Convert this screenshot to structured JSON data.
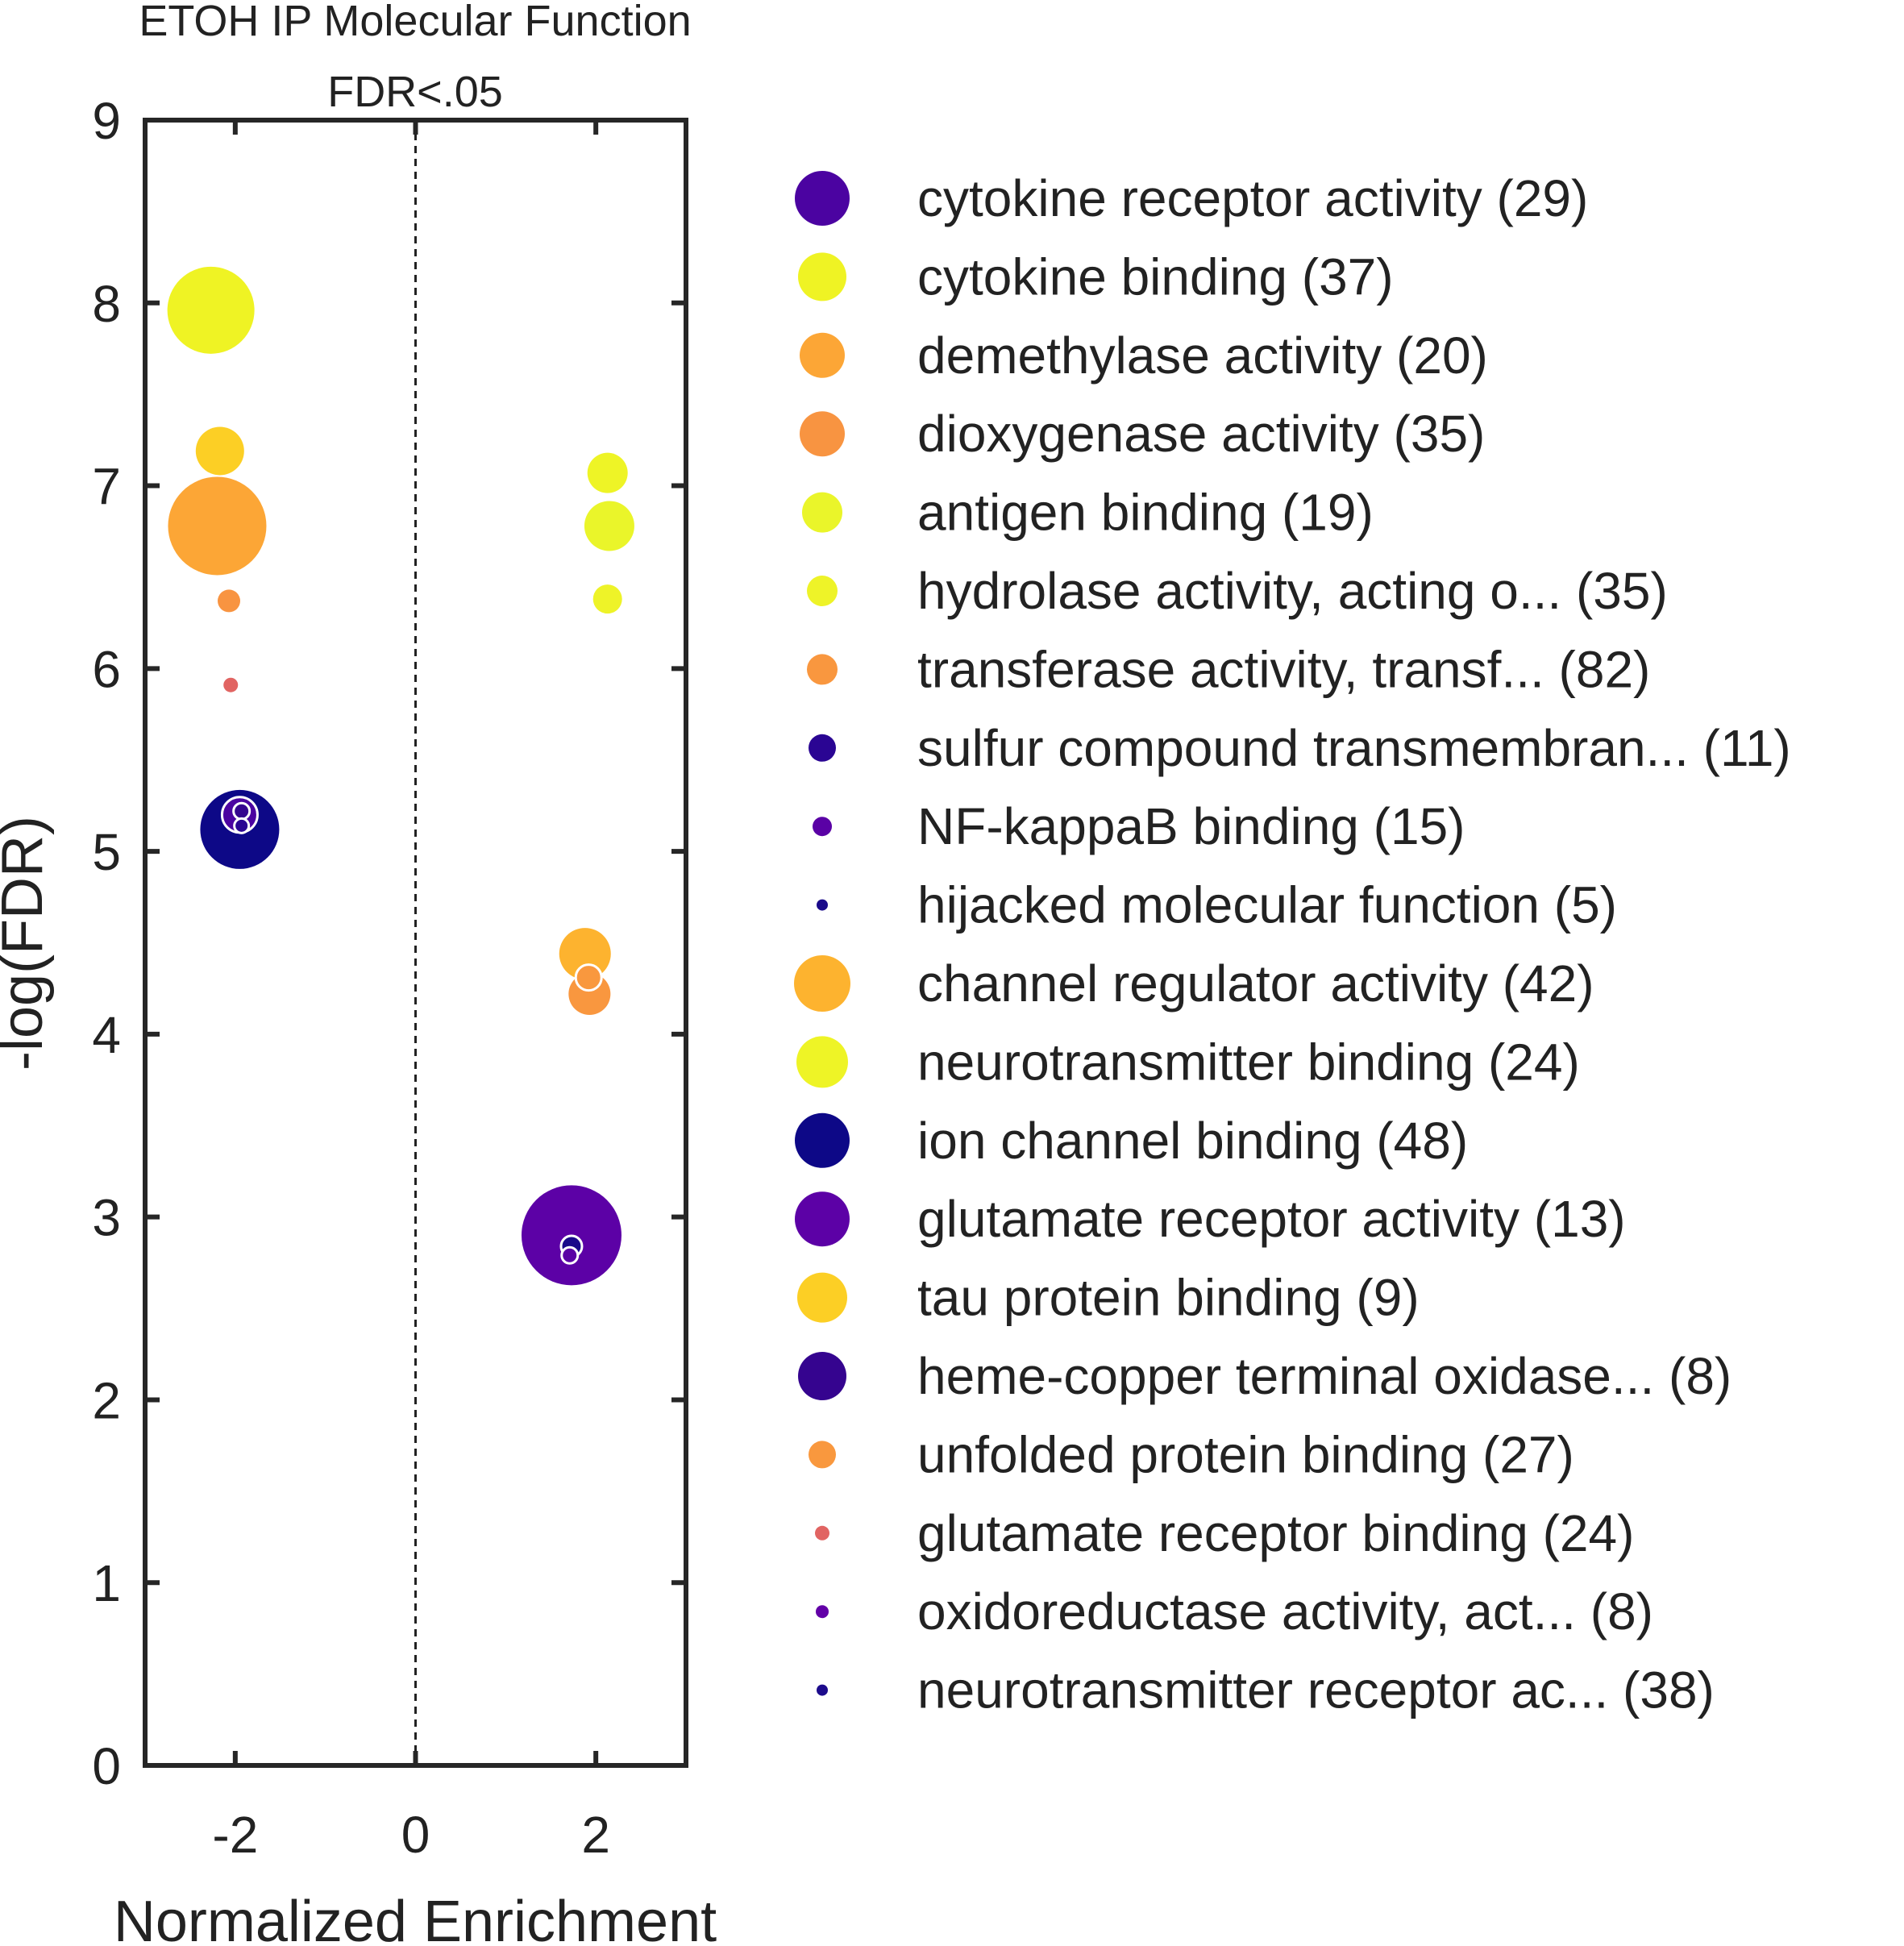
{
  "chart_data": {
    "type": "scatter",
    "title": "ETOH IP Molecular Function",
    "subtitle": "FDR<.05",
    "xlabel": "Normalized Enrichment",
    "ylabel": "-log(FDR)",
    "xlim": [
      -3,
      3
    ],
    "ylim": [
      0,
      9
    ],
    "xticks": [
      -2,
      0,
      2
    ],
    "yticks": [
      0,
      1,
      2,
      3,
      4,
      5,
      6,
      7,
      8,
      9
    ],
    "xtick_labels": [
      "-2",
      "0",
      "2"
    ],
    "ytick_labels": [
      "0",
      "1",
      "2",
      "3",
      "4",
      "5",
      "6",
      "7",
      "8",
      "9"
    ],
    "reference_line": {
      "x": 0,
      "style": "dashed"
    },
    "grid": false,
    "legend_placement": "right",
    "size_encoding": "gene set size",
    "series": [
      {
        "name": "cytokine receptor activity (29)",
        "color": "#4b03a1",
        "legend_radius": 34,
        "points": [
          {
            "x": -1.95,
            "y": 5.2,
            "r": 22,
            "outline": true
          }
        ]
      },
      {
        "name": "cytokine binding (37)",
        "color": "#eff324",
        "legend_radius": 30,
        "points": [
          {
            "x": -2.27,
            "y": 7.96,
            "r": 54
          }
        ]
      },
      {
        "name": "demethylase activity (20)",
        "color": "#fca636",
        "legend_radius": 28,
        "points": [
          {
            "x": -2.2,
            "y": 6.78,
            "r": 61
          }
        ]
      },
      {
        "name": "dioxygenase activity (35)",
        "color": "#f89441",
        "legend_radius": 28,
        "points": [
          {
            "x": -2.07,
            "y": 6.37,
            "r": 14
          }
        ]
      },
      {
        "name": "antigen binding (19)",
        "color": "#eaf52a",
        "legend_radius": 25,
        "points": [
          {
            "x": 2.15,
            "y": 6.78,
            "r": 31
          }
        ]
      },
      {
        "name": "hydrolase activity, acting o... (35)",
        "color": "#eef328",
        "legend_radius": 19,
        "points": [
          {
            "x": 2.13,
            "y": 6.38,
            "r": 18
          }
        ]
      },
      {
        "name": "transferase activity, transf... (82)",
        "color": "#f9973f",
        "legend_radius": 19,
        "points": [
          {
            "x": 1.93,
            "y": 4.22,
            "r": 26
          }
        ]
      },
      {
        "name": "sulfur compound transmembran... (11)",
        "color": "#2a0593",
        "legend_radius": 17,
        "points": [
          {
            "x": -1.93,
            "y": 5.14,
            "r": 9,
            "outline": true
          }
        ]
      },
      {
        "name": "NF-kappaB binding (15)",
        "color": "#5a01a5",
        "legend_radius": 12,
        "points": [
          {
            "x": 1.71,
            "y": 2.79,
            "r": 10,
            "outline": true
          }
        ]
      },
      {
        "name": "hijacked molecular function (5)",
        "color": "#1a0a8a",
        "legend_radius": 7,
        "points": [
          {
            "x": 1.73,
            "y": 2.84,
            "r": 13,
            "outline": true
          }
        ]
      },
      {
        "name": "channel regulator activity (42)",
        "color": "#fdb32f",
        "legend_radius": 35,
        "points": [
          {
            "x": 1.88,
            "y": 4.44,
            "r": 32
          }
        ]
      },
      {
        "name": "neurotransmitter binding (24)",
        "color": "#eef426",
        "legend_radius": 32,
        "points": [
          {
            "x": 2.13,
            "y": 7.07,
            "r": 25
          }
        ]
      },
      {
        "name": "ion channel binding (48)",
        "color": "#0d0887",
        "legend_radius": 34,
        "points": [
          {
            "x": -1.95,
            "y": 5.12,
            "r": 49
          }
        ]
      },
      {
        "name": "glutamate receptor activity (13)",
        "color": "#5c01a6",
        "legend_radius": 34,
        "points": [
          {
            "x": 1.73,
            "y": 2.9,
            "r": 62
          }
        ]
      },
      {
        "name": "tau protein binding (9)",
        "color": "#fccf25",
        "legend_radius": 31,
        "points": [
          {
            "x": -2.17,
            "y": 7.19,
            "r": 30
          }
        ]
      },
      {
        "name": "heme-copper terminal oxidase... (8)",
        "color": "#35048f",
        "legend_radius": 30,
        "points": [
          {
            "x": -1.93,
            "y": 5.22,
            "r": 10,
            "outline": true
          }
        ]
      },
      {
        "name": "unfolded protein binding (27)",
        "color": "#f9983e",
        "legend_radius": 17,
        "points": [
          {
            "x": 1.92,
            "y": 4.31,
            "r": 16,
            "outline": true
          }
        ]
      },
      {
        "name": "glutamate receptor binding (24)",
        "color": "#e16462",
        "legend_radius": 9,
        "points": [
          {
            "x": -2.05,
            "y": 5.91,
            "r": 9
          }
        ]
      },
      {
        "name": "oxidoreductase activity, act... (8)",
        "color": "#6200a7",
        "legend_radius": 8,
        "points": []
      },
      {
        "name": "neurotransmitter receptor ac... (38)",
        "color": "#1c0b8c",
        "legend_radius": 7,
        "points": []
      }
    ]
  }
}
